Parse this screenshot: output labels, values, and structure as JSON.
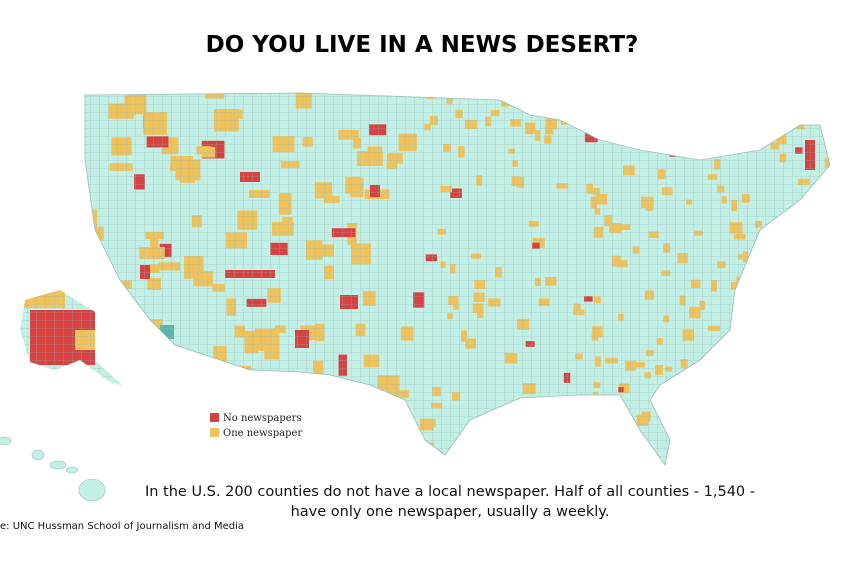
{
  "header": {
    "title": "DO YOU LIVE IN A NEWS DESERT?"
  },
  "legend": {
    "items": [
      {
        "label": "No newspapers",
        "color": "#d94040"
      },
      {
        "label": "One newspaper",
        "color": "#f0c25c"
      }
    ]
  },
  "caption": {
    "lines": [
      "In the U.S. 200 counties do not have a local newspaper.  Half of all counties - 1,540 -",
      "have only one newspaper, usually a weekly."
    ]
  },
  "source": "e:  UNC Hussman School of Journalism and Media"
}
